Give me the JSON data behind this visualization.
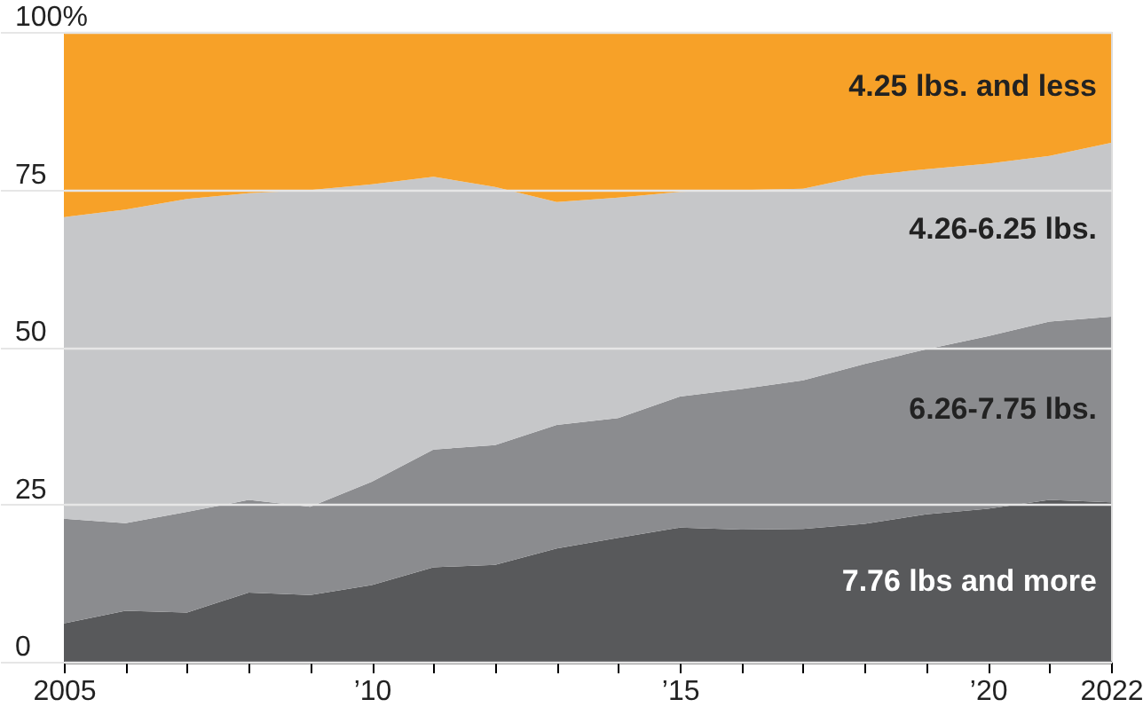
{
  "chart_data": {
    "type": "area",
    "stacked": true,
    "grid": "y",
    "x": [
      2005,
      2006,
      2007,
      2008,
      2009,
      2010,
      2011,
      2012,
      2013,
      2014,
      2015,
      2016,
      2017,
      2018,
      2019,
      2020,
      2021,
      2022
    ],
    "xlim": [
      2005,
      2022
    ],
    "xticks": [
      {
        "value": 2005,
        "label": "2005"
      },
      {
        "value": 2006,
        "label": null
      },
      {
        "value": 2007,
        "label": null
      },
      {
        "value": 2008,
        "label": null
      },
      {
        "value": 2009,
        "label": null
      },
      {
        "value": 2010,
        "label": "’10"
      },
      {
        "value": 2011,
        "label": null
      },
      {
        "value": 2012,
        "label": null
      },
      {
        "value": 2013,
        "label": null
      },
      {
        "value": 2014,
        "label": null
      },
      {
        "value": 2015,
        "label": "’15"
      },
      {
        "value": 2016,
        "label": null
      },
      {
        "value": 2017,
        "label": null
      },
      {
        "value": 2018,
        "label": null
      },
      {
        "value": 2019,
        "label": null
      },
      {
        "value": 2020,
        "label": "’20"
      },
      {
        "value": 2021,
        "label": null
      },
      {
        "value": 2022,
        "label": "2022"
      }
    ],
    "ylim": [
      0,
      100
    ],
    "yticks": [
      0,
      25,
      50,
      75,
      {
        "value": 100,
        "label": "100%"
      }
    ],
    "series": [
      {
        "name": "7.76 lbs and more",
        "color": "#58595b",
        "values": [
          6.1,
          8.1,
          7.8,
          11.0,
          10.6,
          12.2,
          15.0,
          15.4,
          18.0,
          19.7,
          21.3,
          21.0,
          21.1,
          21.9,
          23.4,
          24.3,
          25.7,
          25.3
        ]
      },
      {
        "name": "6.26-7.75 lbs.",
        "color": "#8b8c8f",
        "values": [
          16.6,
          13.9,
          16.0,
          14.7,
          14.0,
          16.4,
          18.7,
          19.0,
          19.6,
          19.0,
          20.8,
          22.3,
          23.6,
          25.4,
          26.2,
          27.4,
          28.3,
          29.5
        ]
      },
      {
        "name": "4.26-6.25 lbs.",
        "color": "#c6c7c9",
        "values": [
          47.9,
          49.8,
          49.7,
          48.7,
          50.3,
          47.2,
          43.3,
          41.0,
          35.4,
          35.0,
          32.5,
          31.6,
          30.4,
          29.9,
          28.6,
          27.4,
          26.3,
          27.6
        ]
      },
      {
        "name": "4.25 lbs. and less",
        "color": "#f7a128",
        "values": [
          29.4,
          28.2,
          26.5,
          25.6,
          25.1,
          24.2,
          23.0,
          24.6,
          27.0,
          26.3,
          25.4,
          25.1,
          24.9,
          22.8,
          21.8,
          20.9,
          19.7,
          17.6
        ]
      }
    ]
  }
}
